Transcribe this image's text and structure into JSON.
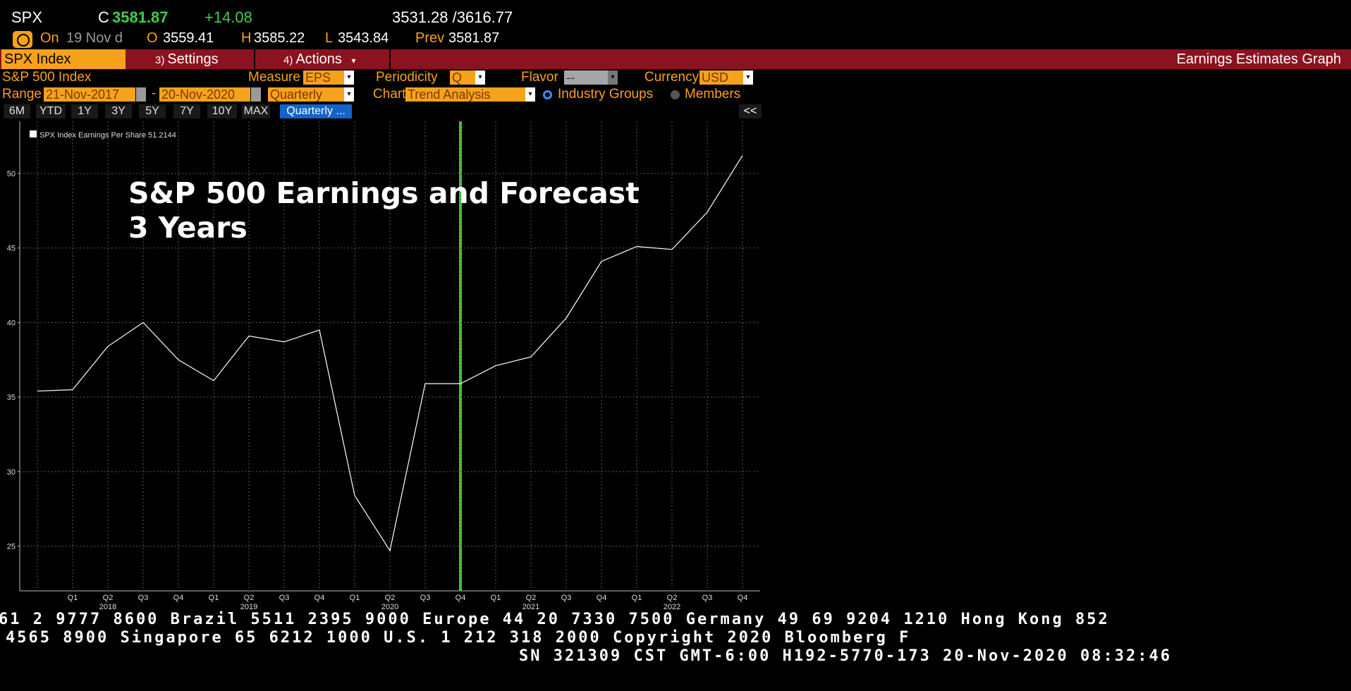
{
  "quote": {
    "ticker": "SPX",
    "c_label": "C",
    "last": "3581.87",
    "change": "+14.08",
    "range": "3531.28 /3616.77",
    "on_label": "On",
    "date": "19 Nov d",
    "o_label": "O",
    "open": "3559.41",
    "h_label": "H",
    "high": "3585.22",
    "l_label": "L",
    "low": "3543.84",
    "prev_label": "Prev",
    "prev": "3581.87"
  },
  "toolbar": {
    "security": "SPX Index",
    "settings_num": "3)",
    "settings": "Settings",
    "actions_num": "4)",
    "actions": "Actions",
    "actions_arrow": "▾",
    "screen_title": "Earnings Estimates Graph"
  },
  "form": {
    "index_name": "S&P 500 Index",
    "measure_label": "Measure",
    "measure": "EPS",
    "periodicity_label": "Periodicity",
    "periodicity": "Q",
    "flavor_label": "Flavor",
    "flavor": "--",
    "currency_label": "Currency",
    "currency": "USD",
    "range_label": "Range",
    "start_date": "21-Nov-2017",
    "date_sep": "-",
    "end_date": "20-Nov-2020",
    "range_freq": "Quarterly",
    "chart_label": "Chart",
    "chart_type": "Trend Analysis",
    "industry_groups": "Industry Groups",
    "members": "Members"
  },
  "periods": {
    "buttons": [
      "6M",
      "YTD",
      "1Y",
      "3Y",
      "5Y",
      "7Y",
      "10Y",
      "MAX"
    ],
    "active": "Quarterly ...",
    "collapse": "<<"
  },
  "chart_data": {
    "type": "line",
    "title": "S&P 500 Earnings and Forecast",
    "subtitle": "3 Years",
    "legend": "SPX Index Earnings Per Share 51.2144",
    "legend_placement": "top-left",
    "x_quarters": [
      "",
      "Q1",
      "Q2",
      "Q3",
      "Q4",
      "Q1",
      "Q2",
      "Q3",
      "Q4",
      "Q1",
      "Q2",
      "Q3",
      "Q4",
      "Q1",
      "Q2",
      "Q3",
      "Q4",
      "Q1",
      "Q2",
      "Q3",
      "Q4"
    ],
    "x_years": [
      {
        "index": 2,
        "label": "2018"
      },
      {
        "index": 6,
        "label": "2019"
      },
      {
        "index": 10,
        "label": "2020"
      },
      {
        "index": 14,
        "label": "2021"
      },
      {
        "index": 18,
        "label": "2022"
      }
    ],
    "series": [
      {
        "name": "SPX Index Earnings Per Share",
        "values": [
          35.4,
          35.5,
          38.4,
          40.0,
          37.5,
          36.1,
          39.1,
          38.7,
          39.5,
          28.4,
          24.7,
          35.9,
          35.9,
          37.1,
          37.7,
          40.3,
          44.1,
          45.1,
          44.9,
          47.4,
          51.2
        ]
      }
    ],
    "ylim": [
      22,
      53.5
    ],
    "y_ticks": [
      25,
      30,
      35,
      40,
      45,
      50
    ],
    "current_marker_index": 12,
    "grid": true,
    "colors": {
      "line": "#ffffff",
      "current_marker": "#39d42c",
      "grid": "#5a5a5a"
    }
  },
  "footer": {
    "line1": "61 2 9777 8600 Brazil 5511 2395 9000 Europe 44 20 7330 7500 Germany 49 69 9204 1210 Hong Kong 852",
    "line2": "4565 8900       Singapore 65 6212 1000     U.S. 1 212 318 2000       Copyright 2020 Bloomberg F",
    "line3": "SN 321309 CST  GMT-6:00 H192-5770-173 20-Nov-2020 08:32:46"
  }
}
